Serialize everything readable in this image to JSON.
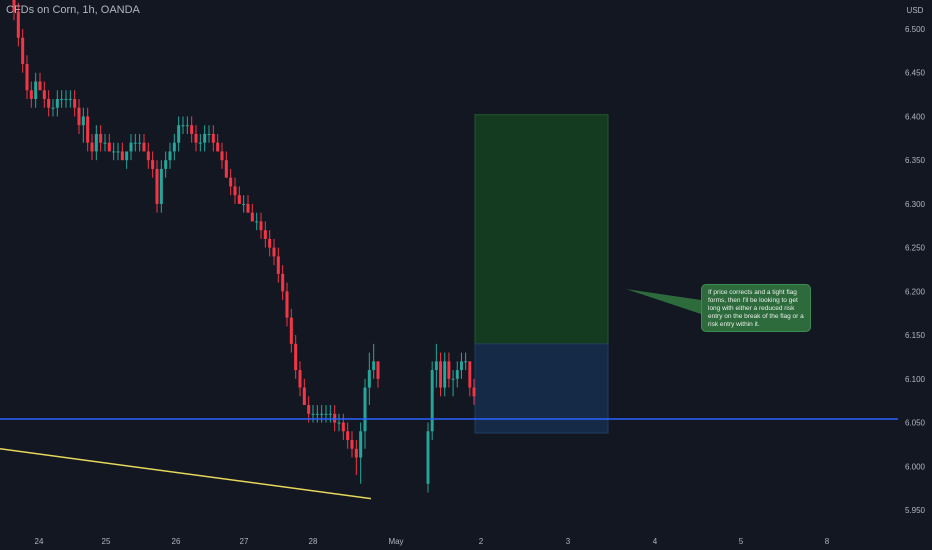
{
  "header": {
    "symbol_title": "CFDs on Corn, 1h, OANDA"
  },
  "colors": {
    "background": "#131722",
    "up_candle": "#26a69a",
    "down_candle": "#f23645",
    "support_line": "#2962ff",
    "trendline": "#e7d75a",
    "target_zone": "#143b1f",
    "entry_zone": "#152a47"
  },
  "annotation": {
    "text": "If price corrects and a tight flag forms, then I'll be looking to get long with either a reduced risk entry on the break of the flag or a risk entry within it."
  },
  "chart_data": {
    "type": "candlestick",
    "currency_label": "USD",
    "y_ticks": [
      "6.500",
      "6.450",
      "6.400",
      "6.350",
      "6.300",
      "6.250",
      "6.200",
      "6.150",
      "6.100",
      "6.050",
      "6.000",
      "5.950"
    ],
    "ylim": [
      5.94,
      6.52
    ],
    "x_ticks": [
      "24",
      "25",
      "26",
      "27",
      "28",
      "May",
      "2",
      "3",
      "4",
      "5",
      "8"
    ],
    "horizontal_line": 6.054,
    "trendline": {
      "from": 6.02,
      "to": 5.963
    },
    "position_zones": {
      "target_top": 6.402,
      "entry": 6.14,
      "stop": 6.038
    },
    "candles": [
      [
        6.55,
        6.56,
        6.51,
        6.52
      ],
      [
        6.52,
        6.53,
        6.48,
        6.49
      ],
      [
        6.49,
        6.5,
        6.45,
        6.46
      ],
      [
        6.46,
        6.47,
        6.42,
        6.43
      ],
      [
        6.43,
        6.44,
        6.41,
        6.42
      ],
      [
        6.42,
        6.45,
        6.41,
        6.44
      ],
      [
        6.44,
        6.45,
        6.43,
        6.43
      ],
      [
        6.43,
        6.44,
        6.41,
        6.42
      ],
      [
        6.42,
        6.43,
        6.4,
        6.41
      ],
      [
        6.41,
        6.42,
        6.4,
        6.41
      ],
      [
        6.41,
        6.43,
        6.4,
        6.42
      ],
      [
        6.42,
        6.43,
        6.41,
        6.42
      ],
      [
        6.42,
        6.43,
        6.41,
        6.42
      ],
      [
        6.42,
        6.43,
        6.41,
        6.42
      ],
      [
        6.42,
        6.43,
        6.4,
        6.41
      ],
      [
        6.41,
        6.42,
        6.38,
        6.39
      ],
      [
        6.39,
        6.41,
        6.37,
        6.4
      ],
      [
        6.4,
        6.41,
        6.36,
        6.37
      ],
      [
        6.37,
        6.38,
        6.35,
        6.36
      ],
      [
        6.36,
        6.39,
        6.35,
        6.38
      ],
      [
        6.38,
        6.39,
        6.36,
        6.37
      ],
      [
        6.37,
        6.38,
        6.36,
        6.37
      ],
      [
        6.37,
        6.38,
        6.36,
        6.36
      ],
      [
        6.36,
        6.37,
        6.35,
        6.36
      ],
      [
        6.36,
        6.37,
        6.35,
        6.36
      ],
      [
        6.36,
        6.37,
        6.35,
        6.35
      ],
      [
        6.35,
        6.36,
        6.34,
        6.36
      ],
      [
        6.36,
        6.38,
        6.35,
        6.37
      ],
      [
        6.37,
        6.38,
        6.36,
        6.37
      ],
      [
        6.37,
        6.38,
        6.36,
        6.37
      ],
      [
        6.37,
        6.38,
        6.36,
        6.36
      ],
      [
        6.36,
        6.37,
        6.34,
        6.35
      ],
      [
        6.35,
        6.36,
        6.33,
        6.34
      ],
      [
        6.34,
        6.35,
        6.29,
        6.3
      ],
      [
        6.3,
        6.35,
        6.29,
        6.34
      ],
      [
        6.34,
        6.36,
        6.33,
        6.35
      ],
      [
        6.35,
        6.37,
        6.34,
        6.36
      ],
      [
        6.36,
        6.38,
        6.35,
        6.37
      ],
      [
        6.37,
        6.4,
        6.36,
        6.39
      ],
      [
        6.39,
        6.4,
        6.38,
        6.39
      ],
      [
        6.39,
        6.4,
        6.38,
        6.39
      ],
      [
        6.39,
        6.4,
        6.37,
        6.38
      ],
      [
        6.38,
        6.39,
        6.36,
        6.37
      ],
      [
        6.37,
        6.38,
        6.36,
        6.37
      ],
      [
        6.37,
        6.39,
        6.36,
        6.38
      ],
      [
        6.38,
        6.39,
        6.37,
        6.38
      ],
      [
        6.38,
        6.39,
        6.36,
        6.37
      ],
      [
        6.37,
        6.38,
        6.36,
        6.36
      ],
      [
        6.36,
        6.37,
        6.34,
        6.35
      ],
      [
        6.35,
        6.36,
        6.33,
        6.33
      ],
      [
        6.33,
        6.34,
        6.31,
        6.32
      ],
      [
        6.32,
        6.33,
        6.3,
        6.31
      ],
      [
        6.31,
        6.32,
        6.3,
        6.3
      ],
      [
        6.3,
        6.31,
        6.29,
        6.3
      ],
      [
        6.3,
        6.31,
        6.29,
        6.29
      ],
      [
        6.29,
        6.3,
        6.28,
        6.28
      ],
      [
        6.28,
        6.29,
        6.27,
        6.28
      ],
      [
        6.28,
        6.29,
        6.26,
        6.27
      ],
      [
        6.27,
        6.28,
        6.25,
        6.26
      ],
      [
        6.26,
        6.27,
        6.24,
        6.25
      ],
      [
        6.25,
        6.26,
        6.23,
        6.24
      ],
      [
        6.24,
        6.25,
        6.21,
        6.22
      ],
      [
        6.22,
        6.23,
        6.19,
        6.2
      ],
      [
        6.2,
        6.21,
        6.16,
        6.17
      ],
      [
        6.17,
        6.18,
        6.13,
        6.14
      ],
      [
        6.14,
        6.15,
        6.1,
        6.11
      ],
      [
        6.11,
        6.12,
        6.08,
        6.09
      ],
      [
        6.09,
        6.1,
        6.07,
        6.07
      ],
      [
        6.07,
        6.08,
        6.05,
        6.06
      ],
      [
        6.06,
        6.07,
        6.05,
        6.06
      ],
      [
        6.06,
        6.07,
        6.05,
        6.06
      ],
      [
        6.06,
        6.07,
        6.05,
        6.06
      ],
      [
        6.06,
        6.07,
        6.05,
        6.06
      ],
      [
        6.06,
        6.07,
        6.05,
        6.06
      ],
      [
        6.06,
        6.07,
        6.04,
        6.05
      ],
      [
        6.05,
        6.06,
        6.04,
        6.05
      ],
      [
        6.05,
        6.06,
        6.03,
        6.04
      ],
      [
        6.04,
        6.05,
        6.02,
        6.03
      ],
      [
        6.03,
        6.04,
        6.01,
        6.02
      ],
      [
        6.02,
        6.03,
        5.99,
        6.01
      ],
      [
        6.01,
        6.05,
        5.98,
        6.04
      ],
      [
        6.04,
        6.1,
        6.02,
        6.09
      ],
      [
        6.09,
        6.13,
        6.07,
        6.11
      ],
      [
        6.11,
        6.14,
        6.1,
        6.12
      ],
      [
        6.12,
        6.12,
        6.09,
        6.1
      ]
    ],
    "candles_after_gap": [
      [
        5.98,
        6.05,
        5.97,
        6.04
      ],
      [
        6.04,
        6.12,
        6.03,
        6.11
      ],
      [
        6.11,
        6.14,
        6.09,
        6.12
      ],
      [
        6.12,
        6.13,
        6.08,
        6.09
      ],
      [
        6.09,
        6.13,
        6.08,
        6.12
      ],
      [
        6.12,
        6.13,
        6.09,
        6.1
      ],
      [
        6.1,
        6.11,
        6.08,
        6.1
      ],
      [
        6.1,
        6.12,
        6.09,
        6.11
      ],
      [
        6.11,
        6.13,
        6.1,
        6.12
      ],
      [
        6.12,
        6.13,
        6.11,
        6.12
      ],
      [
        6.12,
        6.12,
        6.08,
        6.09
      ],
      [
        6.09,
        6.1,
        6.07,
        6.08
      ]
    ]
  }
}
